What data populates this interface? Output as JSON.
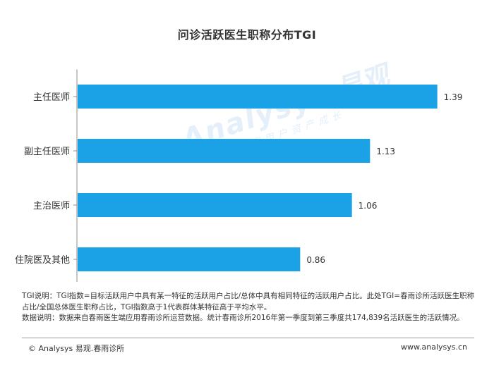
{
  "chart_data": {
    "type": "bar",
    "orientation": "horizontal",
    "title": "问诊活跃医生职称分布TGI",
    "categories": [
      "主任医师",
      "副主任医师",
      "主治医师",
      "住院医及其他"
    ],
    "values": [
      1.39,
      1.13,
      1.06,
      0.86
    ],
    "value_labels": [
      "1.39",
      "1.13",
      "1.06",
      "0.86"
    ],
    "xlim": [
      0,
      1.5
    ],
    "grid": false,
    "bar_color": "#1aa1e6"
  },
  "watermark": {
    "main": "Analysys",
    "cn": "易观",
    "sub": "洞察用户资产成长"
  },
  "notes": {
    "line1": "TGI说明：TGI指数=目标活跃用户中具有某一特征的活跃用户占比/总体中具有相同特征的活跃用户占比。此处TGI=春雨诊所活跃医生职称占比/全国总体医生职称占比，TGI指数高于1代表群体某特征高于平均水平。",
    "line2": "数据说明：数据来自春雨医生端应用春雨诊所运营数据。统计春雨诊所2016年第一季度到第三季度共174,839名活跃医生的活跃情况。"
  },
  "footer": {
    "left": "© Analysys 易观.春雨诊所",
    "right": "www.analysys.cn"
  }
}
